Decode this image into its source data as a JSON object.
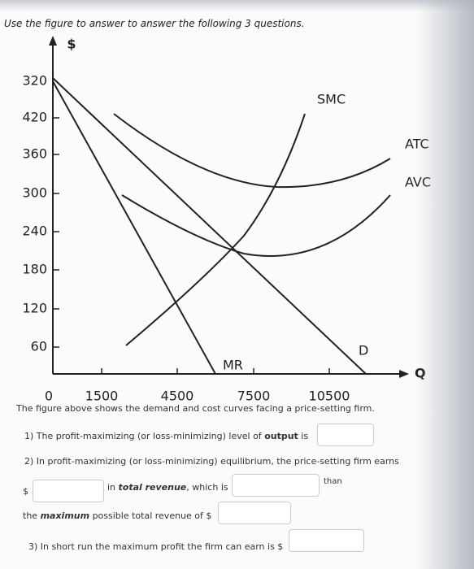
{
  "header": {
    "instruction": "Use the figure to answer to answer the following 3 questions."
  },
  "figure": {
    "y_axis_label": "$",
    "x_axis_label": "Q",
    "y_labels": [
      320,
      420,
      360,
      300,
      240,
      180,
      120,
      60
    ],
    "x_labels": [
      0,
      1500,
      4500,
      7500,
      10500
    ],
    "curve_labels": {
      "smc": "SMC",
      "atc": "ATC",
      "avc": "AVC",
      "mr": "MR",
      "d": "D"
    },
    "caption": "The figure above shows the demand and cost curves facing a price-setting firm."
  },
  "questions": [
    {
      "parts": [
        "1) The profit-maximizing (or loss-minimizing) level of ",
        "output",
        " is"
      ]
    },
    {
      "parts": [
        "2) In profit-maximizing (or loss-minimizing) equilibrium, the price-setting firm earns",
        "$",
        "in ",
        "total revenue",
        ", which is",
        "than",
        "the ",
        "maximum",
        " possible total revenue of $"
      ]
    },
    {
      "parts": [
        "3) In short run the maximum profit the firm can earn is $"
      ]
    }
  ]
}
